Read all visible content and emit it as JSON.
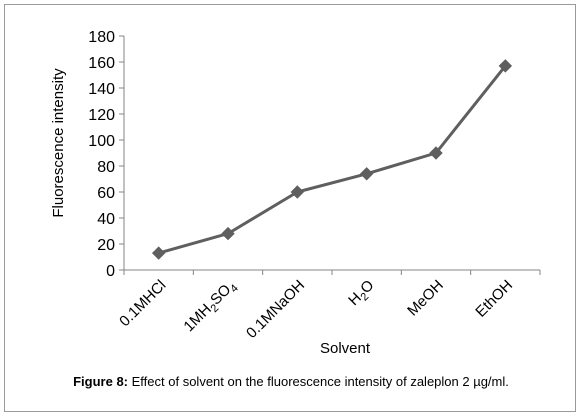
{
  "chart_data": {
    "type": "line",
    "categories": [
      "0.1MHCl",
      "1MH2SO4",
      "0.1MNaOH",
      "H2O",
      "MeOH",
      "EthOH"
    ],
    "category_labels": [
      {
        "parts": [
          {
            "t": "0.1MHCl",
            "sub": false
          }
        ]
      },
      {
        "parts": [
          {
            "t": "1MH",
            "sub": false
          },
          {
            "t": "2",
            "sub": true
          },
          {
            "t": "SO",
            "sub": false
          },
          {
            "t": "4",
            "sub": true
          }
        ]
      },
      {
        "parts": [
          {
            "t": "0.1MNaOH",
            "sub": false
          }
        ]
      },
      {
        "parts": [
          {
            "t": "H",
            "sub": false
          },
          {
            "t": "2",
            "sub": true
          },
          {
            "t": "O",
            "sub": false
          }
        ]
      },
      {
        "parts": [
          {
            "t": "MeOH",
            "sub": false
          }
        ]
      },
      {
        "parts": [
          {
            "t": "EthOH",
            "sub": false
          }
        ]
      }
    ],
    "series": [
      {
        "values": [
          13,
          28,
          60,
          74,
          90,
          157
        ]
      }
    ],
    "xlabel": "Solvent",
    "ylabel": "Fluorescence intensity",
    "ylim": [
      0,
      180
    ],
    "yticks": [
      0,
      20,
      40,
      60,
      80,
      100,
      120,
      140,
      160,
      180
    ],
    "grid": false,
    "marker": "diamond",
    "line_color": "#5f5f5f",
    "marker_color": "#5f5f5f"
  },
  "caption": {
    "label": "Figure 8:",
    "text": " Effect of solvent on the fluorescence intensity of zaleplon 2 µg/ml."
  }
}
